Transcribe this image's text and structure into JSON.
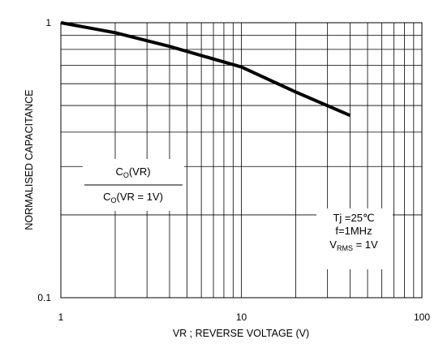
{
  "chart_data": {
    "type": "line",
    "xscale": "log",
    "yscale": "log",
    "xlim": [
      1,
      100
    ],
    "ylim": [
      0.1,
      1
    ],
    "xlabel": "VR ; REVERSE VOLTAGE (V)",
    "ylabel": "NORMALISED CAPACITANCE",
    "x_ticks": [
      1,
      10,
      100
    ],
    "y_ticks": [
      1,
      0.1
    ],
    "x_tick_labels": [
      "1",
      "10",
      "100"
    ],
    "y_tick_labels": [
      "1",
      "0.1"
    ],
    "grid": true,
    "series": [
      {
        "x": [
          1,
          2,
          4,
          10,
          20,
          40
        ],
        "y": [
          1.0,
          0.92,
          0.82,
          0.69,
          0.56,
          0.46
        ]
      }
    ],
    "annotations": {
      "ratio": {
        "numerator": "C",
        "numerator_sub": "O",
        "numerator_rest": "(VR)",
        "denominator": "C",
        "denominator_sub": "O",
        "denominator_rest": "(VR = 1V)"
      },
      "conditions": {
        "line1": "Tj =25℃",
        "line2": "f=1MHz",
        "line3_main": "V",
        "line3_sub": "RMS",
        "line3_rest": " = 1V"
      }
    },
    "line_color": "#000000",
    "grid_color": "#000000"
  }
}
